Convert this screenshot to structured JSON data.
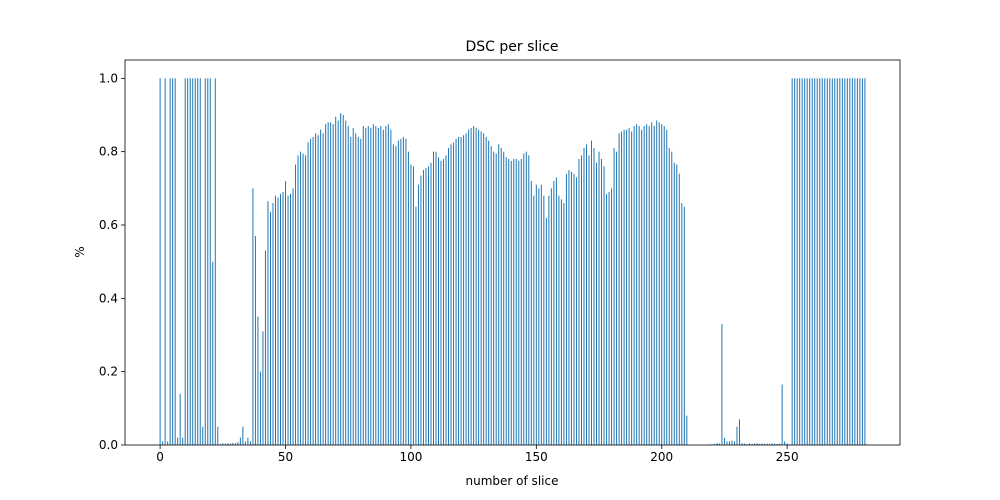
{
  "chart_data": {
    "type": "bar",
    "title": "DSC per slice",
    "xlabel": "number of slice",
    "ylabel": "%",
    "color": "#1f77b4",
    "xlim": [
      -14,
      295
    ],
    "ylim": [
      0,
      1.05
    ],
    "xticks": [
      0,
      50,
      100,
      150,
      200,
      250
    ],
    "yticks": [
      {
        "value": 0,
        "label": "0.0"
      },
      {
        "value": 0.2,
        "label": "0.2"
      },
      {
        "value": 0.4,
        "label": "0.4"
      },
      {
        "value": 0.6,
        "label": "0.6"
      },
      {
        "value": 0.8,
        "label": "0.8"
      },
      {
        "value": 1,
        "label": "1.0"
      }
    ],
    "x": [
      0,
      1,
      2,
      3,
      4,
      5,
      6,
      7,
      8,
      9,
      10,
      11,
      12,
      13,
      14,
      15,
      16,
      17,
      18,
      19,
      20,
      21,
      22,
      23,
      24,
      25,
      26,
      27,
      28,
      29,
      30,
      31,
      32,
      33,
      34,
      35,
      36,
      37,
      38,
      39,
      40,
      41,
      42,
      43,
      44,
      45,
      46,
      47,
      48,
      49,
      50,
      51,
      52,
      53,
      54,
      55,
      56,
      57,
      58,
      59,
      60,
      61,
      62,
      63,
      64,
      65,
      66,
      67,
      68,
      69,
      70,
      71,
      72,
      73,
      74,
      75,
      76,
      77,
      78,
      79,
      80,
      81,
      82,
      83,
      84,
      85,
      86,
      87,
      88,
      89,
      90,
      91,
      92,
      93,
      94,
      95,
      96,
      97,
      98,
      99,
      100,
      101,
      102,
      103,
      104,
      105,
      106,
      107,
      108,
      109,
      110,
      111,
      112,
      113,
      114,
      115,
      116,
      117,
      118,
      119,
      120,
      121,
      122,
      123,
      124,
      125,
      126,
      127,
      128,
      129,
      130,
      131,
      132,
      133,
      134,
      135,
      136,
      137,
      138,
      139,
      140,
      141,
      142,
      143,
      144,
      145,
      146,
      147,
      148,
      149,
      150,
      151,
      152,
      153,
      154,
      155,
      156,
      157,
      158,
      159,
      160,
      161,
      162,
      163,
      164,
      165,
      166,
      167,
      168,
      169,
      170,
      171,
      172,
      173,
      174,
      175,
      176,
      177,
      178,
      179,
      180,
      181,
      182,
      183,
      184,
      185,
      186,
      187,
      188,
      189,
      190,
      191,
      192,
      193,
      194,
      195,
      196,
      197,
      198,
      199,
      200,
      201,
      202,
      203,
      204,
      205,
      206,
      207,
      208,
      209,
      210,
      211,
      212,
      213,
      214,
      215,
      216,
      217,
      218,
      219,
      220,
      221,
      222,
      223,
      224,
      225,
      226,
      227,
      228,
      229,
      230,
      231,
      232,
      233,
      234,
      235,
      236,
      237,
      238,
      239,
      240,
      241,
      242,
      243,
      244,
      245,
      246,
      247,
      248,
      249,
      250,
      251,
      252,
      253,
      254,
      255,
      256,
      257,
      258,
      259,
      260,
      261,
      262,
      263,
      264,
      265,
      266,
      267,
      268,
      269,
      270,
      271,
      272,
      273,
      274,
      275,
      276,
      277,
      278,
      279,
      280,
      281
    ],
    "values": [
      1,
      0.01,
      1,
      0.01,
      1,
      1,
      1,
      0.02,
      0.14,
      0.02,
      1,
      1,
      1,
      1,
      1,
      1,
      1,
      0.05,
      1,
      1,
      1,
      0.5,
      1,
      0.05,
      0.003,
      0.005,
      0.004,
      0.005,
      0.004,
      0.006,
      0.005,
      0.008,
      0.02,
      0.05,
      0.01,
      0.02,
      0.01,
      0.7,
      0.57,
      0.35,
      0.2,
      0.31,
      0.53,
      0.665,
      0.635,
      0.66,
      0.68,
      0.675,
      0.685,
      0.69,
      0.72,
      0.68,
      0.685,
      0.7,
      0.765,
      0.79,
      0.8,
      0.795,
      0.79,
      0.825,
      0.835,
      0.84,
      0.85,
      0.845,
      0.86,
      0.85,
      0.875,
      0.88,
      0.88,
      0.875,
      0.895,
      0.885,
      0.905,
      0.9,
      0.885,
      0.87,
      0.84,
      0.865,
      0.85,
      0.84,
      0.835,
      0.87,
      0.865,
      0.87,
      0.865,
      0.875,
      0.87,
      0.865,
      0.87,
      0.86,
      0.87,
      0.875,
      0.86,
      0.82,
      0.815,
      0.83,
      0.835,
      0.84,
      0.835,
      0.8,
      0.765,
      0.76,
      0.65,
      0.71,
      0.735,
      0.75,
      0.755,
      0.76,
      0.77,
      0.8,
      0.8,
      0.785,
      0.775,
      0.78,
      0.79,
      0.81,
      0.82,
      0.825,
      0.835,
      0.84,
      0.84,
      0.845,
      0.85,
      0.86,
      0.865,
      0.87,
      0.865,
      0.86,
      0.855,
      0.85,
      0.84,
      0.83,
      0.815,
      0.8,
      0.795,
      0.82,
      0.81,
      0.8,
      0.785,
      0.78,
      0.775,
      0.78,
      0.78,
      0.775,
      0.78,
      0.795,
      0.8,
      0.79,
      0.72,
      0.68,
      0.71,
      0.7,
      0.71,
      0.68,
      0.62,
      0.68,
      0.7,
      0.72,
      0.73,
      0.68,
      0.67,
      0.66,
      0.74,
      0.75,
      0.745,
      0.74,
      0.73,
      0.78,
      0.79,
      0.81,
      0.82,
      0.79,
      0.83,
      0.81,
      0.77,
      0.8,
      0.78,
      0.76,
      0.685,
      0.69,
      0.7,
      0.81,
      0.8,
      0.85,
      0.855,
      0.86,
      0.86,
      0.865,
      0.855,
      0.87,
      0.875,
      0.87,
      0.86,
      0.87,
      0.875,
      0.87,
      0.88,
      0.87,
      0.885,
      0.88,
      0.875,
      0.87,
      0.86,
      0.81,
      0.8,
      0.77,
      0.765,
      0.74,
      0.66,
      0.65,
      0.08,
      0,
      0,
      0,
      0,
      0,
      0,
      0,
      0,
      0.001,
      0.002,
      0.003,
      0.005,
      0.004,
      0.33,
      0.02,
      0.01,
      0.01,
      0.012,
      0.01,
      0.05,
      0.07,
      0.005,
      0.004,
      0.003,
      0.004,
      0.003,
      0.004,
      0.005,
      0.003,
      0.004,
      0.003,
      0.004,
      0.003,
      0.005,
      0.004,
      0.003,
      0.004,
      0.165,
      0.01,
      0.005,
      0.002,
      1,
      1,
      1,
      1,
      1,
      1,
      1,
      1,
      1,
      1,
      1,
      1,
      1,
      1,
      1,
      1,
      1,
      1,
      1,
      1,
      1,
      1,
      1,
      1,
      1,
      1,
      1,
      1,
      1,
      1
    ]
  }
}
